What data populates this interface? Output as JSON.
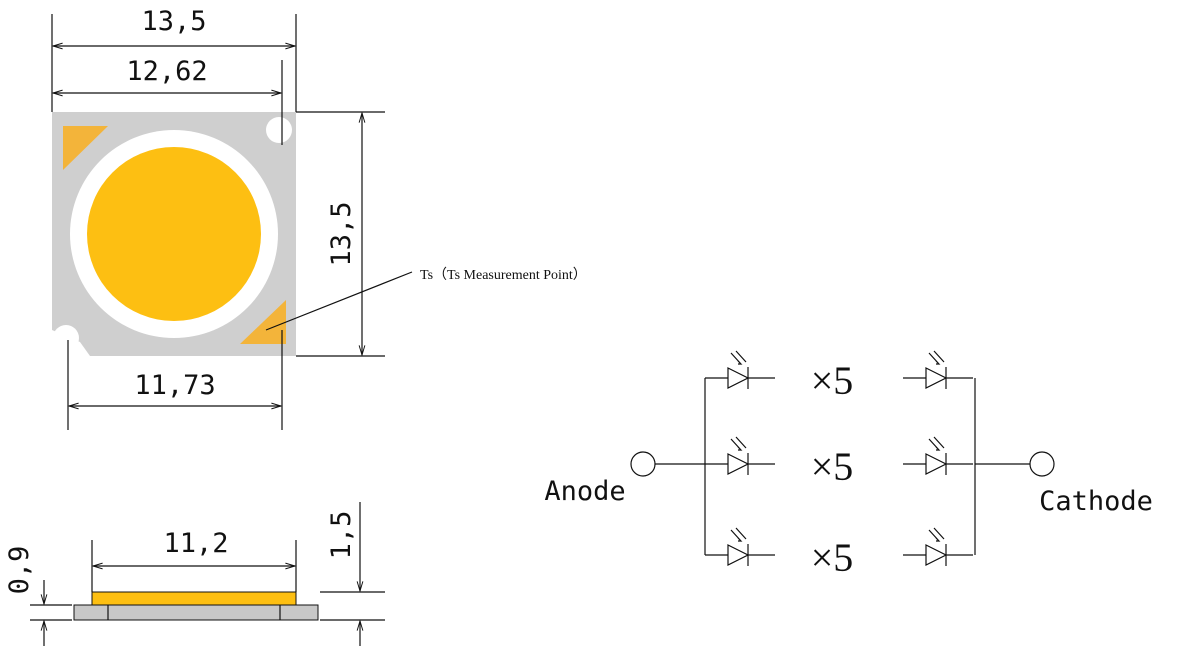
{
  "top_view": {
    "width_total": "13,5",
    "width_upper": "12,62",
    "height": "13,5",
    "width_lower": "11,73",
    "ts_label": "Ts（Ts Measurement Point）"
  },
  "side_view": {
    "thickness_base": "0,9",
    "lens_width": "11,2",
    "thickness_total": "1,5"
  },
  "circuit": {
    "anode": "Anode",
    "cathode": "Cathode",
    "rows": [
      "×5",
      "×5",
      "×5"
    ]
  }
}
